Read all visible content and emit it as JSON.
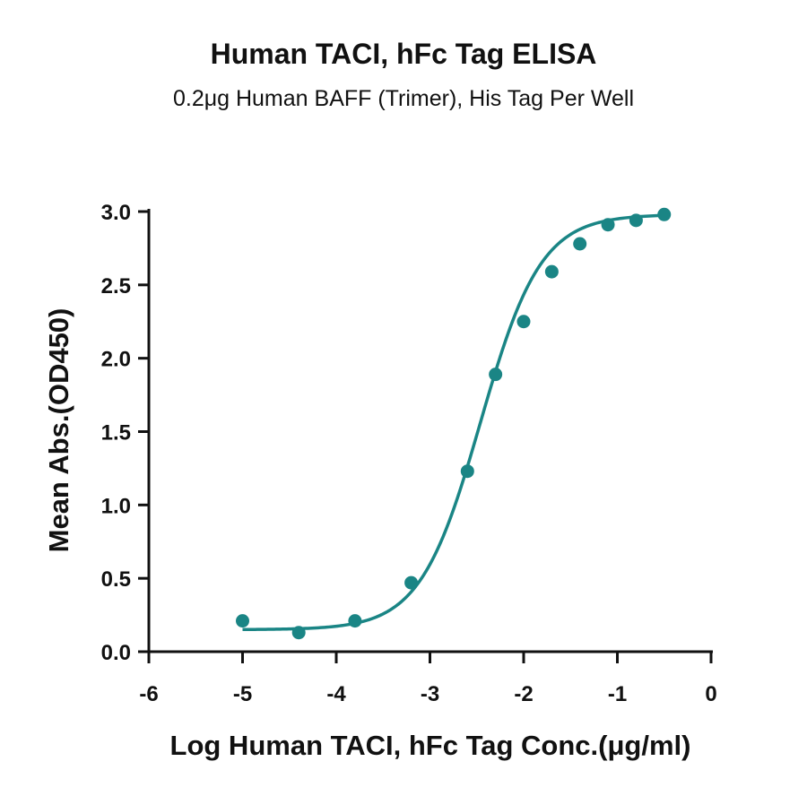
{
  "chart_data": {
    "type": "scatter",
    "title": "Human TACI, hFc Tag ELISA",
    "subtitle": "0.2μg Human BAFF (Trimer), His Tag Per Well",
    "xlabel": "Log Human TACI, hFc Tag Conc.(μg/ml)",
    "ylabel": "Mean Abs.(OD450)",
    "xlim": [
      -6,
      0
    ],
    "ylim": [
      0,
      3.0
    ],
    "x_ticks": [
      "-6",
      "-5",
      "-4",
      "-3",
      "-2",
      "-1",
      "0"
    ],
    "y_ticks": [
      "0.0",
      "0.5",
      "1.0",
      "1.5",
      "2.0",
      "2.5",
      "3.0"
    ],
    "x_tick_values": [
      -6,
      -5,
      -4,
      -3,
      -2,
      -1,
      0
    ],
    "y_tick_values": [
      0,
      0.5,
      1.0,
      1.5,
      2.0,
      2.5,
      3.0
    ],
    "grid": false,
    "color": "#1a8585",
    "series": [
      {
        "x": [
          -5.0,
          -4.4,
          -3.8,
          -3.2,
          -2.6,
          -2.3,
          -2.0,
          -1.7,
          -1.4,
          -1.1,
          -0.8,
          -0.5
        ],
        "y": [
          0.21,
          0.13,
          0.21,
          0.47,
          1.23,
          1.89,
          2.25,
          2.59,
          2.78,
          2.91,
          2.94,
          2.98
        ]
      }
    ],
    "fit_curve": {
      "type": "4PL",
      "bottom": 0.15,
      "top": 2.98,
      "log_ec50": -2.46,
      "hill": 1.35,
      "x_range": [
        -5.0,
        -0.5
      ]
    }
  }
}
